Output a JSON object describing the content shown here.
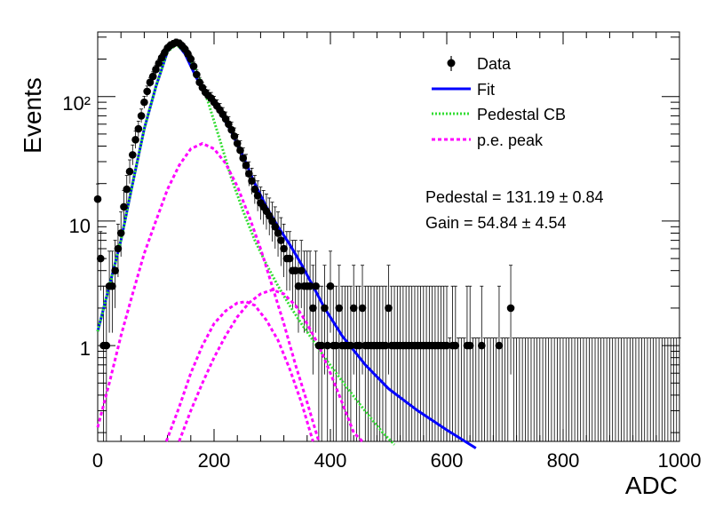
{
  "chart_data": {
    "type": "scatter",
    "xlabel": "ADC",
    "ylabel": "Events",
    "xlim": [
      0,
      1000
    ],
    "ylim": [
      0.17,
      330
    ],
    "y_scale": "log",
    "x_ticks": [
      "0",
      "200",
      "400",
      "600",
      "800",
      "1000"
    ],
    "y_ticks": [
      "1",
      "10",
      "10²"
    ],
    "legend_position": "top-right",
    "legend": [
      {
        "label": "Data",
        "style": "marker",
        "color": "#000000"
      },
      {
        "label": "Fit",
        "style": "solid",
        "color": "#0000ff"
      },
      {
        "label": "Pedestal CB",
        "style": "dotted",
        "color": "#33dd33"
      },
      {
        "label": "p.e. peak",
        "style": "dashed",
        "color": "#ff00ff"
      }
    ],
    "annotations": {
      "pedestal": "Pedestal = 131.19 ± 0.84",
      "gain": "Gain = 54.84 ± 4.54"
    },
    "data_points": [
      [
        0,
        15
      ],
      [
        5,
        5
      ],
      [
        10,
        1
      ],
      [
        15,
        1
      ],
      [
        20,
        3
      ],
      [
        25,
        3
      ],
      [
        30,
        4
      ],
      [
        35,
        6
      ],
      [
        40,
        8
      ],
      [
        45,
        13
      ],
      [
        50,
        18
      ],
      [
        55,
        25
      ],
      [
        60,
        34
      ],
      [
        65,
        45
      ],
      [
        70,
        55
      ],
      [
        75,
        70
      ],
      [
        80,
        90
      ],
      [
        85,
        110
      ],
      [
        90,
        130
      ],
      [
        95,
        145
      ],
      [
        100,
        165
      ],
      [
        105,
        185
      ],
      [
        110,
        205
      ],
      [
        115,
        225
      ],
      [
        120,
        245
      ],
      [
        125,
        258
      ],
      [
        130,
        265
      ],
      [
        135,
        272
      ],
      [
        140,
        268
      ],
      [
        145,
        255
      ],
      [
        150,
        240
      ],
      [
        155,
        220
      ],
      [
        160,
        200
      ],
      [
        165,
        175
      ],
      [
        170,
        150
      ],
      [
        175,
        130
      ],
      [
        180,
        118
      ],
      [
        185,
        108
      ],
      [
        190,
        102
      ],
      [
        195,
        97
      ],
      [
        200,
        90
      ],
      [
        205,
        84
      ],
      [
        210,
        78
      ],
      [
        215,
        72
      ],
      [
        220,
        66
      ],
      [
        225,
        60
      ],
      [
        230,
        54
      ],
      [
        235,
        48
      ],
      [
        240,
        42
      ],
      [
        245,
        37
      ],
      [
        250,
        32
      ],
      [
        255,
        28
      ],
      [
        260,
        24
      ],
      [
        265,
        21
      ],
      [
        270,
        18
      ],
      [
        275,
        16
      ],
      [
        280,
        14
      ],
      [
        285,
        13
      ],
      [
        290,
        12
      ],
      [
        295,
        11
      ],
      [
        300,
        10
      ],
      [
        305,
        9
      ],
      [
        310,
        8
      ],
      [
        315,
        7
      ],
      [
        320,
        6
      ],
      [
        325,
        5
      ],
      [
        330,
        5
      ],
      [
        335,
        4
      ],
      [
        340,
        4
      ],
      [
        345,
        3
      ],
      [
        350,
        4
      ],
      [
        355,
        3
      ],
      [
        360,
        3
      ],
      [
        365,
        3
      ],
      [
        370,
        2
      ],
      [
        375,
        3
      ],
      [
        380,
        1
      ],
      [
        385,
        1
      ],
      [
        390,
        2
      ],
      [
        395,
        1
      ],
      [
        400,
        3
      ],
      [
        405,
        1
      ],
      [
        410,
        1
      ],
      [
        415,
        2
      ],
      [
        420,
        1
      ],
      [
        425,
        1
      ],
      [
        430,
        1
      ],
      [
        435,
        1
      ],
      [
        440,
        2
      ],
      [
        445,
        1
      ],
      [
        450,
        1
      ],
      [
        455,
        2
      ],
      [
        460,
        1
      ],
      [
        465,
        1
      ],
      [
        470,
        1
      ],
      [
        475,
        1
      ],
      [
        480,
        1
      ],
      [
        485,
        1
      ],
      [
        490,
        1
      ],
      [
        495,
        1
      ],
      [
        500,
        2
      ],
      [
        505,
        1
      ],
      [
        510,
        1
      ],
      [
        515,
        1
      ],
      [
        520,
        1
      ],
      [
        525,
        1
      ],
      [
        530,
        1
      ],
      [
        535,
        1
      ],
      [
        540,
        1
      ],
      [
        545,
        1
      ],
      [
        550,
        1
      ],
      [
        555,
        1
      ],
      [
        560,
        1
      ],
      [
        565,
        1
      ],
      [
        570,
        1
      ],
      [
        575,
        1
      ],
      [
        580,
        1
      ],
      [
        585,
        1
      ],
      [
        590,
        1
      ],
      [
        595,
        1
      ],
      [
        600,
        1
      ],
      [
        610,
        1
      ],
      [
        615,
        1
      ],
      [
        635,
        1
      ],
      [
        640,
        1
      ],
      [
        660,
        1
      ],
      [
        690,
        1
      ],
      [
        710,
        2
      ]
    ],
    "error_bars_to_1000": true,
    "curves": [
      {
        "name": "Fit",
        "color": "#0000ff",
        "points": [
          [
            0,
            1.3
          ],
          [
            20,
            3
          ],
          [
            40,
            7
          ],
          [
            60,
            20
          ],
          [
            80,
            55
          ],
          [
            100,
            120
          ],
          [
            120,
            230
          ],
          [
            135,
            270
          ],
          [
            150,
            220
          ],
          [
            170,
            140
          ],
          [
            190,
            105
          ],
          [
            210,
            75
          ],
          [
            230,
            52
          ],
          [
            250,
            33
          ],
          [
            270,
            20
          ],
          [
            290,
            13
          ],
          [
            310,
            9
          ],
          [
            330,
            6.5
          ],
          [
            350,
            4.5
          ],
          [
            370,
            3
          ],
          [
            390,
            2
          ],
          [
            420,
            1.2
          ],
          [
            460,
            0.7
          ],
          [
            500,
            0.45
          ],
          [
            550,
            0.3
          ],
          [
            600,
            0.21
          ],
          [
            650,
            0.15
          ]
        ]
      },
      {
        "name": "Pedestal CB",
        "color": "#33dd33",
        "points": [
          [
            0,
            1.3
          ],
          [
            20,
            3
          ],
          [
            40,
            7
          ],
          [
            60,
            20
          ],
          [
            80,
            55
          ],
          [
            100,
            120
          ],
          [
            120,
            230
          ],
          [
            135,
            260
          ],
          [
            150,
            230
          ],
          [
            170,
            160
          ],
          [
            190,
            90
          ],
          [
            210,
            45
          ],
          [
            230,
            22
          ],
          [
            250,
            12
          ],
          [
            270,
            7
          ],
          [
            290,
            4.5
          ],
          [
            310,
            3
          ],
          [
            330,
            2.1
          ],
          [
            350,
            1.5
          ],
          [
            370,
            1.1
          ],
          [
            390,
            0.8
          ],
          [
            410,
            0.6
          ],
          [
            430,
            0.45
          ],
          [
            450,
            0.34
          ],
          [
            470,
            0.26
          ],
          [
            490,
            0.2
          ],
          [
            510,
            0.16
          ]
        ]
      },
      {
        "name": "p.e. peak 1",
        "color": "#ff00ff",
        "points": [
          [
            0,
            0.22
          ],
          [
            20,
            0.5
          ],
          [
            40,
            1.2
          ],
          [
            60,
            2.6
          ],
          [
            80,
            5.5
          ],
          [
            100,
            10
          ],
          [
            120,
            18
          ],
          [
            140,
            28
          ],
          [
            160,
            38
          ],
          [
            180,
            42
          ],
          [
            200,
            38
          ],
          [
            220,
            29
          ],
          [
            240,
            19
          ],
          [
            260,
            11
          ],
          [
            280,
            6
          ],
          [
            300,
            3
          ],
          [
            320,
            1.5
          ],
          [
            340,
            0.7
          ],
          [
            360,
            0.35
          ],
          [
            380,
            0.17
          ]
        ]
      },
      {
        "name": "p.e. peak 2",
        "color": "#ff00ff",
        "points": [
          [
            118,
            0.17
          ],
          [
            140,
            0.32
          ],
          [
            160,
            0.6
          ],
          [
            180,
            1
          ],
          [
            200,
            1.5
          ],
          [
            220,
            1.9
          ],
          [
            240,
            2.2
          ],
          [
            255,
            2.25
          ],
          [
            270,
            2.1
          ],
          [
            290,
            1.6
          ],
          [
            310,
            1.1
          ],
          [
            330,
            0.65
          ],
          [
            350,
            0.35
          ],
          [
            370,
            0.17
          ]
        ]
      },
      {
        "name": "p.e. peak 3",
        "color": "#ff00ff",
        "points": [
          [
            140,
            0.17
          ],
          [
            160,
            0.3
          ],
          [
            180,
            0.5
          ],
          [
            200,
            0.8
          ],
          [
            220,
            1.2
          ],
          [
            240,
            1.7
          ],
          [
            260,
            2.2
          ],
          [
            280,
            2.6
          ],
          [
            300,
            2.8
          ],
          [
            320,
            2.6
          ],
          [
            340,
            2.1
          ],
          [
            360,
            1.5
          ],
          [
            380,
            1
          ],
          [
            400,
            0.6
          ],
          [
            420,
            0.35
          ],
          [
            440,
            0.2
          ],
          [
            455,
            0.17
          ]
        ]
      }
    ]
  }
}
